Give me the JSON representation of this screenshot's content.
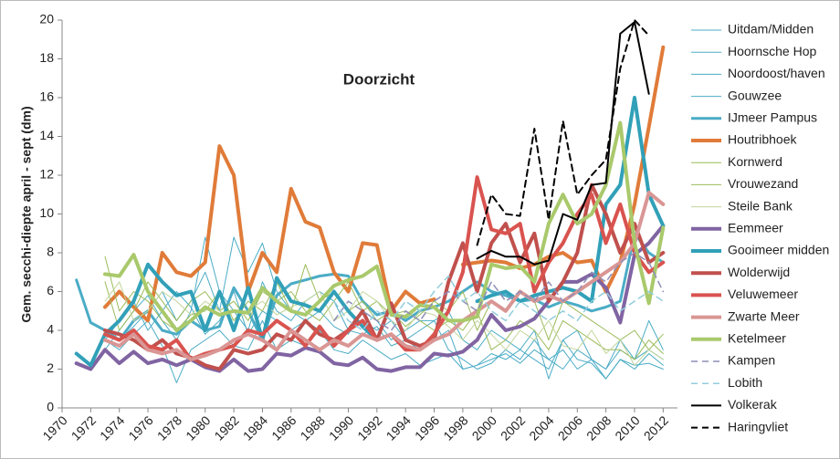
{
  "chart_data": {
    "type": "line",
    "title": "Doorzicht",
    "y_label": "Gem. secchi-diepte april - sept  (dm)",
    "x": [
      1971,
      1972,
      1973,
      1974,
      1975,
      1976,
      1977,
      1978,
      1979,
      1980,
      1981,
      1982,
      1983,
      1984,
      1985,
      1986,
      1987,
      1988,
      1989,
      1990,
      1991,
      1992,
      1993,
      1994,
      1995,
      1996,
      1997,
      1998,
      1999,
      2000,
      2001,
      2002,
      2003,
      2004,
      2005,
      2006,
      2007,
      2008,
      2009,
      2010,
      2011,
      2012
    ],
    "xlim": [
      1970,
      2013
    ],
    "xticks": [
      1970,
      1972,
      1974,
      1976,
      1978,
      1980,
      1982,
      1984,
      1986,
      1988,
      1990,
      1992,
      1994,
      1996,
      1998,
      2000,
      2002,
      2004,
      2006,
      2008,
      2010,
      2012
    ],
    "ylim": [
      0,
      20
    ],
    "yticks": [
      0,
      2,
      4,
      6,
      8,
      10,
      12,
      14,
      16,
      18,
      20
    ],
    "grid": false,
    "series": [
      {
        "name": "Uitdam/Midden",
        "color": "#4bacc6",
        "width": 1,
        "dash": false,
        "values": [
          null,
          null,
          3.5,
          3.0,
          3.8,
          4.5,
          3.2,
          1.3,
          3.0,
          3.5,
          4.0,
          3.2,
          3.0,
          4.5,
          3.0,
          3.5,
          3.2,
          4.0,
          3.0,
          2.8,
          3.5,
          3.0,
          2.5,
          2.8,
          2.2,
          2.5,
          2.8,
          2.0,
          2.2,
          2.8,
          2.5,
          3.0,
          2.5,
          2.0,
          3.5,
          2.5,
          2.3,
          1.5,
          2.5,
          2.2,
          2.3,
          2.0
        ]
      },
      {
        "name": "Hoornsche Hop",
        "color": "#4bacc6",
        "width": 1,
        "dash": false,
        "values": [
          null,
          null,
          3.0,
          4.0,
          5.0,
          5.8,
          4.5,
          3.5,
          5.0,
          8.8,
          6.0,
          5.0,
          4.0,
          6.5,
          5.0,
          4.5,
          5.5,
          6.0,
          5.5,
          4.0,
          4.5,
          4.0,
          4.5,
          3.5,
          4.0,
          4.5,
          3.0,
          2.5,
          2.0,
          2.3,
          3.0,
          2.5,
          3.5,
          2.5,
          2.0,
          3.0,
          2.5,
          2.0,
          3.0,
          2.5,
          4.5,
          3.0
        ]
      },
      {
        "name": "Noordoost/haven",
        "color": "#4bacc6",
        "width": 1,
        "dash": false,
        "values": [
          null,
          null,
          4.0,
          3.5,
          4.2,
          5.0,
          6.0,
          4.5,
          5.5,
          7.0,
          5.0,
          8.8,
          7.0,
          8.5,
          6.0,
          5.0,
          4.5,
          5.0,
          4.2,
          3.8,
          5.0,
          4.5,
          3.5,
          4.0,
          4.5,
          4.5,
          5.0,
          3.5,
          3.0,
          4.0,
          3.5,
          3.0,
          4.0,
          1.5,
          3.5,
          4.0,
          2.5,
          2.0,
          3.5,
          2.5,
          3.0,
          2.5
        ]
      },
      {
        "name": "Gouwzee",
        "color": "#4bacc6",
        "width": 1,
        "dash": false,
        "values": [
          null,
          null,
          3.5,
          4.5,
          5.5,
          4.0,
          5.0,
          6.0,
          5.2,
          3.8,
          4.5,
          6.0,
          3.8,
          5.0,
          4.5,
          4.0,
          4.5,
          4.0,
          3.5,
          4.0,
          3.8,
          4.2,
          3.2,
          3.5,
          3.0,
          3.5,
          4.0,
          2.0,
          2.2,
          2.5,
          2.8,
          2.3,
          3.0,
          2.5,
          3.0,
          2.0,
          2.5,
          1.5,
          2.5,
          2.0,
          2.8,
          2.2
        ]
      },
      {
        "name": "IJmeer Pampus",
        "color": "#4bacc6",
        "width": 3,
        "dash": false,
        "values": [
          6.6,
          4.4,
          4.0,
          3.5,
          4.5,
          5.0,
          4.0,
          3.8,
          4.5,
          4.0,
          4.2,
          6.2,
          5.0,
          3.5,
          5.8,
          6.4,
          6.6,
          6.8,
          6.9,
          6.8,
          5.5,
          4.8,
          5.0,
          4.5,
          5.0,
          5.2,
          5.5,
          6.0,
          6.5,
          6.0,
          5.8,
          5.5,
          5.6,
          5.2,
          5.5,
          5.3,
          5.0,
          5.2,
          5.5,
          9.0,
          8.0,
          7.5
        ]
      },
      {
        "name": "Houtribhoek",
        "color": "#e07b39",
        "width": 4,
        "dash": false,
        "values": [
          null,
          null,
          5.2,
          6.0,
          5.2,
          4.5,
          8.0,
          7.0,
          6.8,
          7.5,
          13.5,
          12.0,
          6.0,
          8.0,
          7.0,
          11.3,
          9.6,
          9.3,
          7.0,
          6.0,
          8.5,
          8.4,
          5.0,
          6.0,
          5.4,
          5.6,
          null,
          7.4,
          7.5,
          7.6,
          7.5,
          7.2,
          7.4,
          7.8,
          8.0,
          7.5,
          7.6,
          6.0,
          7.5,
          10.5,
          14.5,
          18.6
        ]
      },
      {
        "name": "Kornwerd",
        "color": "#9bbb59",
        "width": 1,
        "dash": false,
        "values": [
          null,
          null,
          7.8,
          5.0,
          6.0,
          5.5,
          4.5,
          4.0,
          4.8,
          5.0,
          6.0,
          4.5,
          5.5,
          5.0,
          6.5,
          5.0,
          7.4,
          5.5,
          6.0,
          5.0,
          5.5,
          4.5,
          5.0,
          4.2,
          4.8,
          5.5,
          5.0,
          6.0,
          4.0,
          5.5,
          5.0,
          6.0,
          5.5,
          3.5,
          5.5,
          5.0,
          4.5,
          4.0,
          3.5,
          4.0,
          3.0,
          3.8
        ]
      },
      {
        "name": "Vrouwezand",
        "color": "#9bbb59",
        "width": 1,
        "dash": false,
        "values": [
          null,
          null,
          6.5,
          4.0,
          5.0,
          6.5,
          5.5,
          4.5,
          5.5,
          6.0,
          5.0,
          5.5,
          4.5,
          6.0,
          5.5,
          6.0,
          5.0,
          4.5,
          5.5,
          6.5,
          5.0,
          5.5,
          4.8,
          5.0,
          4.5,
          4.0,
          4.5,
          4.0,
          5.0,
          3.0,
          3.5,
          4.5,
          4.0,
          3.0,
          4.5,
          4.0,
          3.5,
          3.0,
          3.0,
          2.5,
          3.5,
          2.8
        ]
      },
      {
        "name": "Steile Bank",
        "color": "#c3d69b",
        "width": 1,
        "dash": false,
        "values": [
          null,
          null,
          5.5,
          6.5,
          4.5,
          5.0,
          6.0,
          5.5,
          4.8,
          5.5,
          5.0,
          4.5,
          5.0,
          5.5,
          4.8,
          5.2,
          5.5,
          6.0,
          4.5,
          5.0,
          6.0,
          5.5,
          4.5,
          4.0,
          5.0,
          4.8,
          4.2,
          3.5,
          4.5,
          3.8,
          3.0,
          4.0,
          3.5,
          4.5,
          3.2,
          3.0,
          4.0,
          2.8,
          3.5,
          2.2,
          3.0,
          2.5
        ]
      },
      {
        "name": "Eemmeer",
        "color": "#8064a2",
        "width": 4,
        "dash": false,
        "values": [
          2.3,
          2.0,
          3.0,
          2.3,
          2.9,
          2.3,
          2.5,
          2.2,
          2.5,
          2.1,
          1.9,
          2.5,
          1.9,
          2.0,
          2.8,
          2.7,
          3.1,
          2.9,
          2.3,
          2.2,
          2.6,
          2.0,
          1.9,
          2.1,
          2.1,
          2.8,
          2.7,
          2.9,
          3.5,
          4.8,
          4.0,
          4.2,
          4.6,
          5.5,
          6.5,
          6.5,
          6.9,
          6.2,
          4.4,
          7.9,
          8.5,
          9.4
        ]
      },
      {
        "name": "Gooimeer midden",
        "color": "#31a0b8",
        "width": 4,
        "dash": false,
        "values": [
          2.8,
          2.2,
          3.8,
          4.5,
          5.5,
          7.4,
          6.5,
          5.8,
          6.0,
          4.0,
          6.0,
          4.0,
          6.2,
          3.5,
          6.7,
          5.5,
          5.3,
          5.0,
          6.0,
          5.0,
          4.2,
          3.5,
          null,
          null,
          null,
          null,
          null,
          null,
          5.5,
          5.8,
          6.0,
          5.5,
          5.8,
          6.0,
          6.2,
          6.0,
          5.5,
          10.5,
          11.5,
          16.0,
          11.0,
          9.4
        ]
      },
      {
        "name": "Wolderwijd",
        "color": "#c0504d",
        "width": 4,
        "dash": false,
        "values": [
          null,
          null,
          4.0,
          3.8,
          3.5,
          3.0,
          3.5,
          2.8,
          2.6,
          2.2,
          2.0,
          3.0,
          2.8,
          3.0,
          3.8,
          3.5,
          4.5,
          3.8,
          3.5,
          4.0,
          5.0,
          3.5,
          5.4,
          3.5,
          3.2,
          3.5,
          6.5,
          8.5,
          6.0,
          8.5,
          9.5,
          7.5,
          9.0,
          5.5,
          6.5,
          8.0,
          11.5,
          10.0,
          8.0,
          9.5,
          7.5,
          8.0
        ]
      },
      {
        "name": "Veluwemeer",
        "color": "#d9534f",
        "width": 4,
        "dash": false,
        "values": [
          null,
          null,
          3.8,
          3.5,
          4.0,
          3.2,
          3.0,
          3.5,
          2.5,
          2.8,
          3.0,
          3.2,
          4.0,
          3.8,
          4.5,
          4.0,
          3.2,
          4.2,
          3.2,
          4.0,
          4.5,
          3.5,
          3.8,
          3.0,
          3.0,
          3.8,
          5.0,
          7.0,
          11.9,
          9.2,
          9.0,
          9.5,
          6.0,
          7.5,
          8.5,
          10.0,
          11.0,
          8.5,
          10.5,
          8.0,
          7.0,
          7.5
        ]
      },
      {
        "name": "Zwarte Meer",
        "color": "#d99694",
        "width": 4,
        "dash": false,
        "values": [
          null,
          null,
          3.5,
          3.2,
          3.8,
          3.0,
          2.8,
          3.0,
          2.5,
          2.7,
          3.0,
          3.5,
          3.8,
          3.5,
          3.0,
          4.0,
          3.5,
          3.0,
          3.5,
          3.2,
          3.8,
          3.5,
          3.8,
          3.2,
          3.0,
          3.5,
          3.8,
          4.5,
          5.0,
          5.5,
          5.0,
          6.0,
          5.5,
          5.8,
          5.5,
          6.0,
          6.5,
          7.0,
          7.5,
          8.5,
          11.1,
          10.5
        ]
      },
      {
        "name": "Ketelmeer",
        "color": "#a9c96b",
        "width": 4,
        "dash": false,
        "values": [
          null,
          null,
          6.9,
          6.8,
          7.9,
          6.0,
          5.0,
          4.0,
          4.5,
          5.2,
          4.8,
          5.0,
          4.9,
          6.2,
          5.5,
          5.0,
          4.8,
          5.5,
          6.3,
          6.6,
          6.8,
          7.3,
          4.8,
          4.7,
          5.3,
          5.2,
          4.5,
          4.5,
          4.7,
          7.4,
          7.2,
          7.3,
          6.5,
          9.5,
          11.0,
          9.5,
          10.0,
          11.5,
          14.7,
          8.5,
          5.4,
          9.3
        ]
      },
      {
        "name": "Kampen",
        "color": "#8e8eb8",
        "width": 1.5,
        "dash": true,
        "values": [
          null,
          null,
          null,
          null,
          null,
          null,
          null,
          null,
          null,
          null,
          null,
          null,
          null,
          null,
          null,
          null,
          null,
          null,
          4.5,
          5.5,
          5.0,
          4.5,
          4.0,
          5.0,
          4.5,
          5.5,
          6.0,
          5.5,
          5.0,
          6.5,
          5.5,
          6.0,
          5.5,
          6.5,
          5.5,
          6.0,
          7.0,
          6.5,
          7.5,
          8.0,
          7.5,
          6.0
        ]
      },
      {
        "name": "Lobith",
        "color": "#92cddc",
        "width": 1.5,
        "dash": true,
        "values": [
          null,
          null,
          null,
          null,
          null,
          null,
          null,
          null,
          null,
          null,
          null,
          null,
          null,
          null,
          null,
          null,
          null,
          null,
          5.5,
          4.5,
          4.0,
          5.0,
          4.5,
          5.5,
          5.0,
          6.0,
          6.8,
          5.5,
          6.0,
          5.0,
          4.5,
          5.5,
          5.0,
          4.5,
          5.0,
          4.5,
          5.5,
          6.0,
          5.0,
          5.5,
          6.0,
          5.5
        ]
      },
      {
        "name": "Volkerak",
        "color": "#000000",
        "width": 2,
        "dash": false,
        "values": [
          null,
          null,
          null,
          null,
          null,
          null,
          null,
          null,
          null,
          null,
          null,
          null,
          null,
          null,
          null,
          null,
          null,
          null,
          null,
          null,
          null,
          null,
          null,
          null,
          null,
          null,
          null,
          null,
          7.7,
          8.1,
          7.8,
          7.8,
          7.4,
          7.6,
          10.0,
          9.7,
          11.5,
          11.6,
          19.3,
          19.9,
          16.2,
          null
        ]
      },
      {
        "name": "Haringvliet",
        "color": "#000000",
        "width": 2,
        "dash": true,
        "values": [
          null,
          null,
          null,
          null,
          null,
          null,
          null,
          null,
          null,
          null,
          null,
          null,
          null,
          null,
          null,
          null,
          null,
          null,
          null,
          null,
          null,
          null,
          null,
          null,
          null,
          null,
          null,
          null,
          8.4,
          11.0,
          10.0,
          9.9,
          14.4,
          9.7,
          14.8,
          11.0,
          12.0,
          12.8,
          17.5,
          20.0,
          19.2,
          null
        ]
      }
    ]
  }
}
